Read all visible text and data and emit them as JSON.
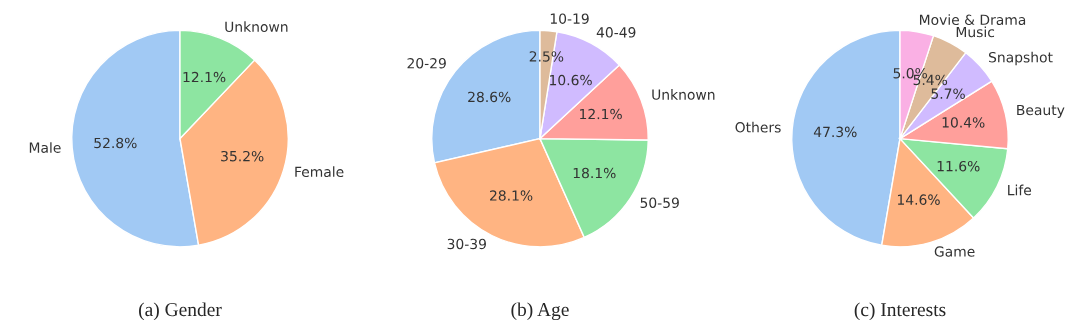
{
  "chart_data": [
    {
      "type": "pie",
      "title": "(a) Gender",
      "categories": [
        "Male",
        "Female",
        "Unknown"
      ],
      "values": [
        52.8,
        35.2,
        12.1
      ],
      "colors": [
        "#a1c9f4",
        "#ffb482",
        "#8de5a1"
      ],
      "value_labels": [
        "52.8%",
        "35.2%",
        "12.1%"
      ]
    },
    {
      "type": "pie",
      "title": "(b) Age",
      "categories": [
        "20-29",
        "30-39",
        "50-59",
        "Unknown",
        "40-49",
        "10-19"
      ],
      "values": [
        28.6,
        28.1,
        18.1,
        12.1,
        10.6,
        2.5
      ],
      "colors": [
        "#a1c9f4",
        "#ffb482",
        "#8de5a1",
        "#ff9f9b",
        "#d0bbff",
        "#debb9b"
      ],
      "value_labels": [
        "28.6%",
        "28.1%",
        "18.1%",
        "12.1%",
        "10.6%",
        "2.5%"
      ]
    },
    {
      "type": "pie",
      "title": "(c) Interests",
      "categories": [
        "Others",
        "Game",
        "Life",
        "Beauty",
        "Snapshot",
        "Music",
        "Movie & Drama"
      ],
      "values": [
        47.3,
        14.6,
        11.6,
        10.4,
        5.7,
        5.4,
        5.0
      ],
      "colors": [
        "#a1c9f4",
        "#ffb482",
        "#8de5a1",
        "#ff9f9b",
        "#d0bbff",
        "#debb9b",
        "#fab0e4"
      ],
      "value_labels": [
        "47.3%",
        "14.6%",
        "11.6%",
        "10.4%",
        "5.7%",
        "5.4%",
        "5.0%"
      ]
    }
  ]
}
